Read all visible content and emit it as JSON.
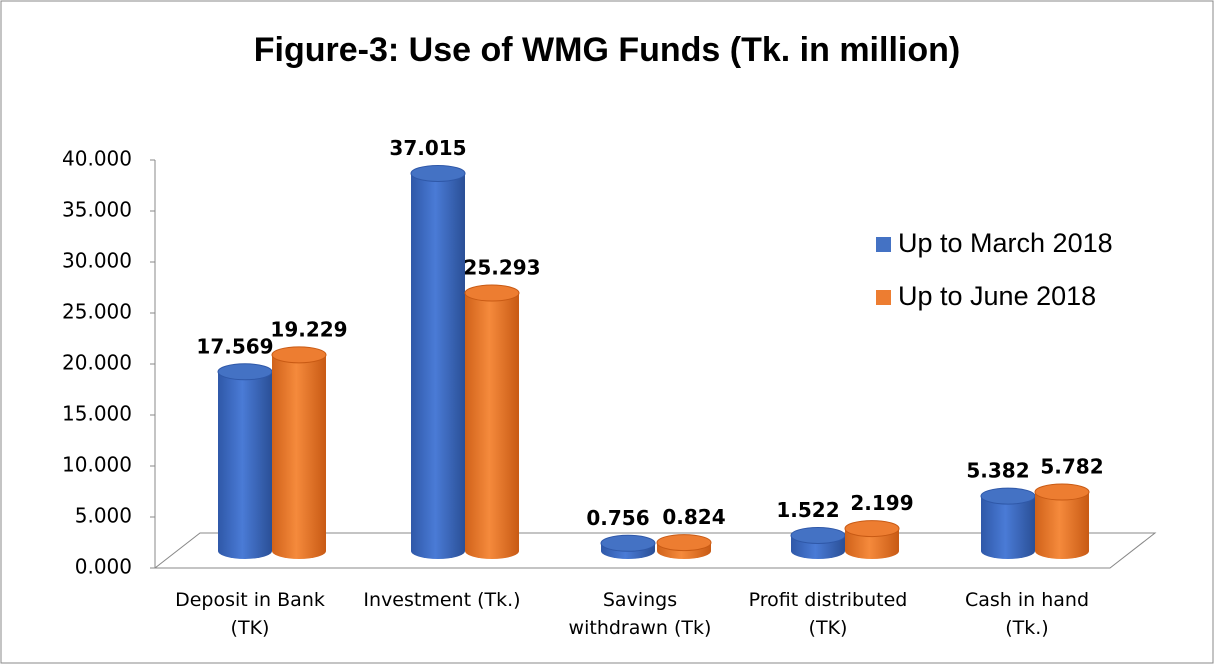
{
  "chart_data": {
    "type": "bar3d",
    "title": "Figure-3: Use of WMG Funds (Tk. in million)",
    "categories": [
      "Deposit in Bank (TK)",
      "Investment (Tk.)",
      "Savings withdrawn (Tk)",
      "Profit distributed (TK)",
      "Cash in hand (Tk.)"
    ],
    "series": [
      {
        "name": "Up to March 2018",
        "color": "#4472c4",
        "values": [
          17.569,
          37.015,
          0.756,
          1.522,
          5.382
        ]
      },
      {
        "name": "Up to June 2018",
        "color": "#ed7d31",
        "values": [
          19.229,
          25.293,
          0.824,
          2.199,
          5.782
        ]
      }
    ],
    "ylim": [
      0,
      40
    ],
    "yticks": [
      {
        "value": 0,
        "label": "0.000"
      },
      {
        "value": 5,
        "label": "5.000"
      },
      {
        "value": 10,
        "label": "10.000"
      },
      {
        "value": 15,
        "label": "15.000"
      },
      {
        "value": 20,
        "label": "20.000"
      },
      {
        "value": 25,
        "label": "25.000"
      },
      {
        "value": 30,
        "label": "30.000"
      },
      {
        "value": 35,
        "label": "35.000"
      },
      {
        "value": 40,
        "label": "40.000"
      }
    ],
    "legend": "right"
  }
}
